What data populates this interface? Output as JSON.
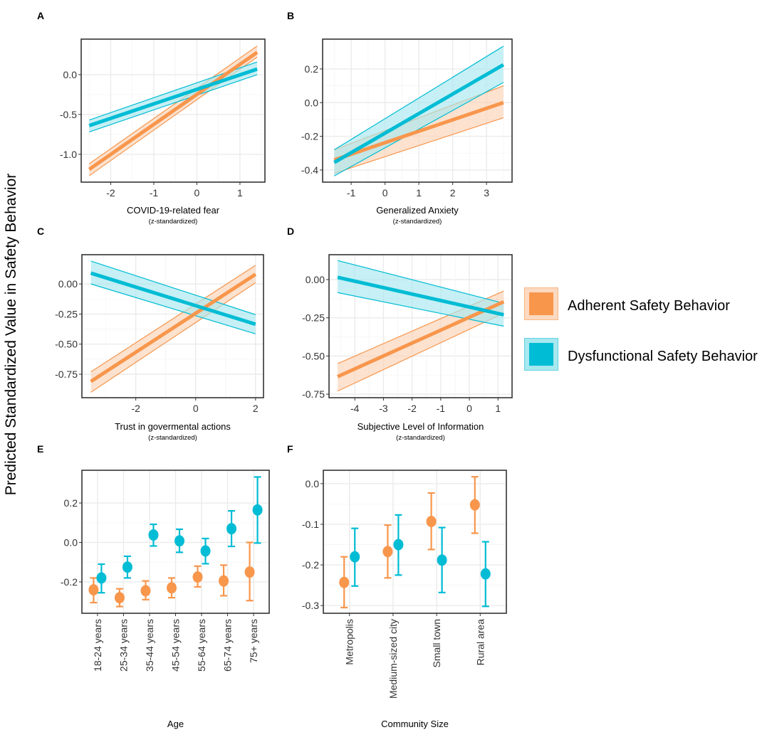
{
  "y_title": "Predicted Standardized Value in Safety Behavior",
  "legend": [
    {
      "label": "Adherent Safety Behavior",
      "color": "#F8964C",
      "fill": "#FAD3B6"
    },
    {
      "label": "Dysfunctional Safety Behavior",
      "color": "#00BCD4",
      "fill": "#A8E8EF"
    }
  ],
  "chart_data": [
    {
      "panel": "A",
      "type": "line",
      "xlabel": "COVID-19-related fear",
      "xsub": "(z-standardized)",
      "xlim": [
        -2.686,
        1.58
      ],
      "ylim": [
        -1.35,
        0.446
      ],
      "xticks": [
        -2,
        -1,
        0,
        1
      ],
      "yticks": [
        0.0,
        -0.5,
        -1.0
      ],
      "ytick_labels": [
        "0.0",
        "-0.5",
        "-1.0"
      ],
      "grid": true,
      "series": [
        {
          "name": "Adherent Safety Behavior",
          "x": [
            -2.5,
            1.4
          ],
          "y": [
            -1.19,
            0.28
          ],
          "lo": [
            -1.27,
            0.22
          ],
          "hi": [
            -1.12,
            0.36
          ]
        },
        {
          "name": "Dysfunctional Safety Behavior",
          "x": [
            -2.5,
            1.4
          ],
          "y": [
            -0.64,
            0.07
          ],
          "lo": [
            -0.72,
            0.0
          ],
          "hi": [
            -0.57,
            0.16
          ]
        }
      ]
    },
    {
      "panel": "B",
      "type": "line",
      "xlabel": "Generalized Anxiety",
      "xsub": "(z-standardized)",
      "xlim": [
        -1.844,
        3.755
      ],
      "ylim": [
        -0.472,
        0.377
      ],
      "xticks": [
        -1,
        0,
        1,
        2,
        3
      ],
      "yticks": [
        0.2,
        0.0,
        -0.2,
        -0.4
      ],
      "ytick_labels": [
        "0.2",
        "0.0",
        "-0.2",
        "-0.4"
      ],
      "grid": true,
      "series": [
        {
          "name": "Adherent Safety Behavior",
          "x": [
            -1.5,
            3.5
          ],
          "y": [
            -0.34,
            0.0
          ],
          "lo": [
            -0.42,
            -0.09
          ],
          "hi": [
            -0.28,
            0.1
          ]
        },
        {
          "name": "Dysfunctional Safety Behavior",
          "x": [
            -1.5,
            3.5
          ],
          "y": [
            -0.355,
            0.225
          ],
          "lo": [
            -0.435,
            0.12
          ],
          "hi": [
            -0.28,
            0.335
          ]
        }
      ]
    },
    {
      "panel": "C",
      "type": "line",
      "xlabel": "Trust in govermental actions",
      "xsub": "(z-standardized)",
      "xlim": [
        -3.8,
        2.266
      ],
      "ylim": [
        -0.945,
        0.243
      ],
      "xticks": [
        -2,
        0,
        2
      ],
      "yticks": [
        0.0,
        -0.25,
        -0.5,
        -0.75
      ],
      "ytick_labels": [
        "0.00",
        "-0.25",
        "-0.50",
        "-0.75"
      ],
      "grid": true,
      "series": [
        {
          "name": "Adherent Safety Behavior",
          "x": [
            -3.5,
            2
          ],
          "y": [
            -0.81,
            0.08
          ],
          "lo": [
            -0.9,
            0.01
          ],
          "hi": [
            -0.73,
            0.155
          ]
        },
        {
          "name": "Dysfunctional Safety Behavior",
          "x": [
            -3.5,
            2
          ],
          "y": [
            0.09,
            -0.335
          ],
          "lo": [
            0.0,
            -0.415
          ],
          "hi": [
            0.19,
            -0.255
          ]
        }
      ]
    },
    {
      "panel": "D",
      "type": "line",
      "xlabel": "Subjective Level of Information",
      "xsub": "(z-standardized)",
      "xlim": [
        -4.9,
        1.49
      ],
      "ylim": [
        -0.773,
        0.163
      ],
      "xticks": [
        -4,
        -3,
        -2,
        -1,
        0,
        1
      ],
      "yticks": [
        0.0,
        -0.25,
        -0.5,
        -0.75
      ],
      "ytick_labels": [
        "0.00",
        "-0.25",
        "-0.50",
        "-0.75"
      ],
      "grid": true,
      "series": [
        {
          "name": "Adherent Safety Behavior",
          "x": [
            -4.6,
            1.2
          ],
          "y": [
            -0.635,
            -0.145
          ],
          "lo": [
            -0.73,
            -0.22
          ],
          "hi": [
            -0.55,
            -0.075
          ]
        },
        {
          "name": "Dysfunctional Safety Behavior",
          "x": [
            -4.6,
            1.2
          ],
          "y": [
            0.015,
            -0.23
          ],
          "lo": [
            -0.085,
            -0.305
          ],
          "hi": [
            0.125,
            -0.155
          ]
        }
      ]
    },
    {
      "panel": "E",
      "type": "scatter",
      "xlabel": "Age",
      "categories": [
        "18-24 years",
        "25-34 years",
        "35-44 years",
        "45-54 years",
        "55-64 years",
        "65-74 years",
        "75+ years"
      ],
      "ylim": [
        -0.359,
        0.366
      ],
      "yticks": [
        0.2,
        0.0,
        -0.2
      ],
      "ytick_labels": [
        "0.2",
        "0.0",
        "-0.2"
      ],
      "grid": true,
      "series": [
        {
          "name": "Adherent Safety Behavior",
          "y": [
            -0.24,
            -0.28,
            -0.245,
            -0.23,
            -0.175,
            -0.195,
            -0.15
          ],
          "lo": [
            -0.305,
            -0.325,
            -0.29,
            -0.28,
            -0.225,
            -0.27,
            -0.295
          ],
          "hi": [
            -0.18,
            -0.235,
            -0.195,
            -0.18,
            -0.12,
            -0.115,
            0.0
          ]
        },
        {
          "name": "Dysfunctional Safety Behavior",
          "y": [
            -0.18,
            -0.125,
            0.038,
            0.008,
            -0.043,
            0.07,
            0.165
          ],
          "lo": [
            -0.255,
            -0.18,
            -0.018,
            -0.05,
            -0.108,
            -0.02,
            -0.003
          ],
          "hi": [
            -0.11,
            -0.07,
            0.092,
            0.067,
            0.02,
            0.16,
            0.332
          ]
        }
      ]
    },
    {
      "panel": "F",
      "type": "scatter",
      "xlabel": "Community Size",
      "categories": [
        "Metropolis",
        "Medium-sized city",
        "Small town",
        "Rural area"
      ],
      "ylim": [
        -0.319,
        0.033
      ],
      "yticks": [
        0.0,
        -0.1,
        -0.2,
        -0.3
      ],
      "ytick_labels": [
        "0.0",
        "-0.1",
        "-0.2",
        "-0.3"
      ],
      "grid": true,
      "series": [
        {
          "name": "Adherent Safety Behavior",
          "y": [
            -0.243,
            -0.167,
            -0.093,
            -0.052
          ],
          "lo": [
            -0.305,
            -0.232,
            -0.162,
            -0.122
          ],
          "hi": [
            -0.18,
            -0.102,
            -0.023,
            0.017
          ]
        },
        {
          "name": "Dysfunctional Safety Behavior",
          "y": [
            -0.18,
            -0.15,
            -0.188,
            -0.222
          ],
          "lo": [
            -0.252,
            -0.225,
            -0.268,
            -0.302
          ],
          "hi": [
            -0.11,
            -0.077,
            -0.108,
            -0.143
          ]
        }
      ]
    }
  ]
}
